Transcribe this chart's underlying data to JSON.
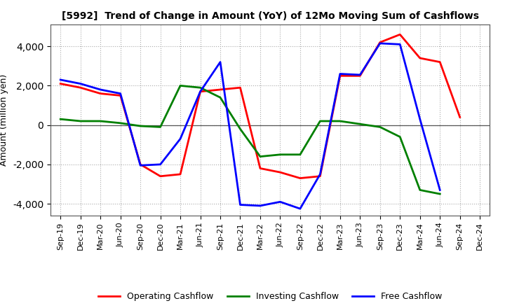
{
  "title": "[5992]  Trend of Change in Amount (YoY) of 12Mo Moving Sum of Cashflows",
  "ylabel": "Amount (million yen)",
  "x_labels": [
    "Sep-19",
    "Dec-19",
    "Mar-20",
    "Jun-20",
    "Sep-20",
    "Dec-20",
    "Mar-21",
    "Jun-21",
    "Sep-21",
    "Dec-21",
    "Mar-22",
    "Jun-22",
    "Sep-22",
    "Dec-22",
    "Mar-23",
    "Jun-23",
    "Sep-23",
    "Dec-23",
    "Mar-24",
    "Jun-24",
    "Sep-24",
    "Dec-24"
  ],
  "operating": [
    2100,
    1900,
    1600,
    1500,
    -2000,
    -2600,
    -2500,
    1700,
    1800,
    1900,
    -2200,
    -2400,
    -2700,
    -2600,
    2500,
    2500,
    4200,
    4600,
    3400,
    3200,
    400,
    null
  ],
  "investing": [
    300,
    200,
    200,
    100,
    -50,
    -100,
    2000,
    1900,
    1400,
    -200,
    -1600,
    -1500,
    -1500,
    200,
    200,
    50,
    -100,
    -600,
    -3300,
    -3500,
    null,
    null
  ],
  "free": [
    2300,
    2100,
    1800,
    1600,
    -2050,
    -2000,
    -700,
    1700,
    3200,
    -4050,
    -4100,
    -3900,
    -4250,
    -2500,
    2600,
    2550,
    4150,
    4100,
    300,
    -3300,
    null,
    null
  ],
  "operating_color": "#ff0000",
  "investing_color": "#008000",
  "free_color": "#0000ff",
  "ylim": [
    -4600,
    5100
  ],
  "yticks": [
    -4000,
    -2000,
    0,
    2000,
    4000
  ],
  "bg_color": "#ffffff",
  "grid_color": "#aaaaaa",
  "title_fontsize": 10,
  "ylabel_fontsize": 9,
  "tick_fontsize": 8,
  "legend_fontsize": 9,
  "linewidth": 2.0
}
